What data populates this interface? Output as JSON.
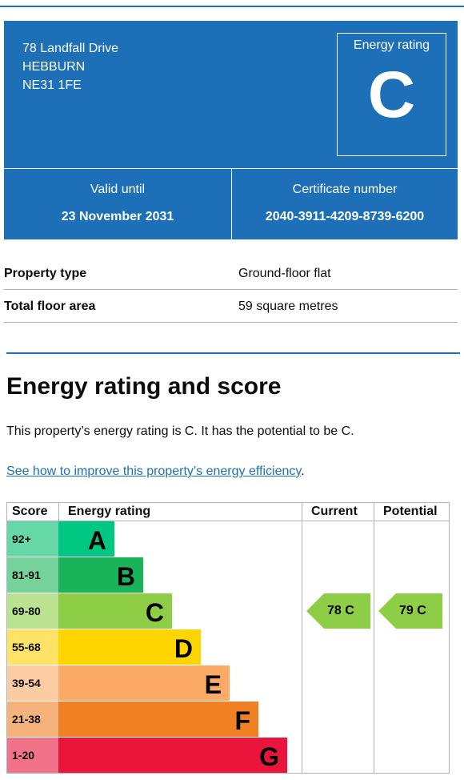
{
  "address": {
    "line1": "78 Landfall Drive",
    "line2": "HEBBURN",
    "line3": "NE31 1FE"
  },
  "energy_rating": {
    "label": "Energy rating",
    "letter": "C"
  },
  "valid_until": {
    "label": "Valid until",
    "value": "23 November 2031"
  },
  "certificate": {
    "label": "Certificate number",
    "value": "2040-3911-4209-8739-6200"
  },
  "summary": [
    {
      "key": "Property type",
      "value": "Ground-floor flat"
    },
    {
      "key": "Total floor area",
      "value": "59 square metres"
    }
  ],
  "section": {
    "heading": "Energy rating and score",
    "paragraph": "This property’s energy rating is C. It has the potential to be C.",
    "link_text": "See how to improve this property’s energy efficiency",
    "link_suffix": "."
  },
  "chart_data": {
    "type": "table",
    "headers": {
      "score": "Score",
      "rating": "Energy rating",
      "current": "Current",
      "potential": "Potential"
    },
    "bands": [
      {
        "score": "92+",
        "letter": "A",
        "bar_color": "#00c781",
        "score_color": "#66d8a8"
      },
      {
        "score": "81-91",
        "letter": "B",
        "bar_color": "#19b459",
        "score_color": "#75d29b"
      },
      {
        "score": "69-80",
        "letter": "C",
        "bar_color": "#8dce46",
        "score_color": "#bbe290"
      },
      {
        "score": "55-68",
        "letter": "D",
        "bar_color": "#ffd500",
        "score_color": "#ffe366"
      },
      {
        "score": "39-54",
        "letter": "E",
        "bar_color": "#fcaa65",
        "score_color": "#fdcca3"
      },
      {
        "score": "21-38",
        "letter": "F",
        "bar_color": "#ef8023",
        "score_color": "#f5b37b"
      },
      {
        "score": "1-20",
        "letter": "G",
        "bar_color": "#e9153b",
        "score_color": "#f27389"
      }
    ],
    "current": {
      "value": 78,
      "letter": "C",
      "label": "78 C",
      "color": "#8dce46"
    },
    "potential": {
      "value": 79,
      "letter": "C",
      "label": "79 C",
      "color": "#8dce46"
    }
  }
}
